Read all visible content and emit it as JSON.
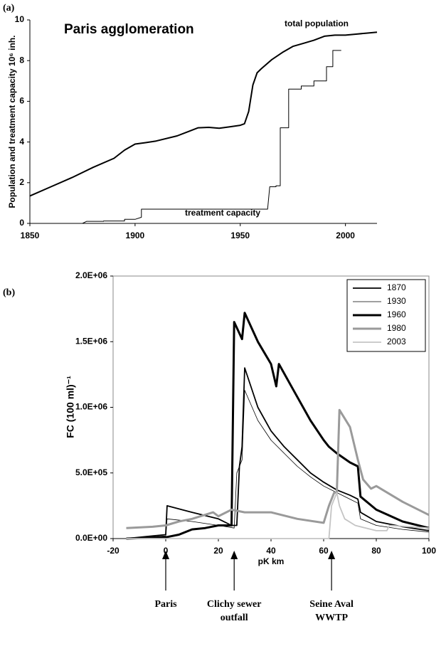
{
  "chart_data": [
    {
      "type": "line",
      "panel_label": "(a)",
      "title": "Paris agglomeration",
      "y_label": "Population and treatment capacity 10⁶ inh.",
      "xlim": [
        1850,
        2015
      ],
      "xticks": [
        1850,
        1900,
        1950,
        2000
      ],
      "ylim": [
        0,
        10
      ],
      "yticks": [
        0,
        2,
        4,
        6,
        8,
        10
      ],
      "series": [
        {
          "name": "total population",
          "color": "#000000",
          "linewidth": 2,
          "x": [
            1850,
            1860,
            1870,
            1880,
            1890,
            1895,
            1900,
            1905,
            1910,
            1920,
            1925,
            1930,
            1935,
            1940,
            1945,
            1950,
            1952,
            1954,
            1956,
            1958,
            1960,
            1965,
            1970,
            1975,
            1980,
            1985,
            1990,
            1995,
            2000,
            2005,
            2010,
            2015
          ],
          "values": [
            1.35,
            1.8,
            2.25,
            2.75,
            3.2,
            3.6,
            3.9,
            3.97,
            4.05,
            4.3,
            4.5,
            4.7,
            4.72,
            4.68,
            4.75,
            4.82,
            4.9,
            5.5,
            6.8,
            7.4,
            7.6,
            8.05,
            8.4,
            8.7,
            8.85,
            9.0,
            9.2,
            9.25,
            9.25,
            9.3,
            9.35,
            9.4
          ]
        },
        {
          "name": "treatment capacity",
          "color": "#000000",
          "linewidth": 1,
          "x": [
            1875,
            1877,
            1885,
            1885,
            1895,
            1895,
            1900,
            1903,
            1903,
            1963,
            1964,
            1967,
            1967,
            1969,
            1969,
            1973,
            1973,
            1979,
            1979,
            1985,
            1985,
            1991,
            1991,
            1994,
            1994,
            1998
          ],
          "values": [
            0,
            0.1,
            0.1,
            0.12,
            0.12,
            0.2,
            0.2,
            0.3,
            0.7,
            0.7,
            1.8,
            1.8,
            1.85,
            1.85,
            4.7,
            4.7,
            6.6,
            6.6,
            6.75,
            6.75,
            7.0,
            7.0,
            7.7,
            7.7,
            8.5,
            8.5
          ]
        }
      ]
    },
    {
      "type": "line",
      "panel_label": "(b)",
      "y_label": "FC (100 ml)⁻¹",
      "x_label": "pK km",
      "xlim": [
        -20,
        100
      ],
      "xticks": [
        -20,
        0,
        20,
        40,
        60,
        80,
        100
      ],
      "ylim": [
        0,
        2000000
      ],
      "yticks": [
        {
          "value": 0,
          "label": "0.0E+00"
        },
        {
          "value": 500000,
          "label": "5.0E+05"
        },
        {
          "value": 1000000,
          "label": "1.0E+06"
        },
        {
          "value": 1500000,
          "label": "1.5E+06"
        },
        {
          "value": 2000000,
          "label": "2.0E+06"
        }
      ],
      "legend": "top-right",
      "series": [
        {
          "name": "1870",
          "color": "#000000",
          "linewidth": 1.8,
          "x": [
            -15,
            -5,
            0,
            0.5,
            10,
            20,
            25,
            27,
            28,
            29,
            30,
            35,
            40,
            45,
            50,
            55,
            60,
            65,
            70,
            73,
            74,
            80,
            90,
            100
          ],
          "values": [
            0,
            20000,
            30000,
            250000,
            200000,
            150000,
            100000,
            100000,
            550000,
            700000,
            1300000,
            1000000,
            820000,
            700000,
            600000,
            500000,
            430000,
            370000,
            330000,
            300000,
            200000,
            130000,
            90000,
            60000
          ]
        },
        {
          "name": "1930",
          "color": "#000000",
          "linewidth": 0.8,
          "x": [
            -15,
            0,
            0.5,
            10,
            20,
            26,
            27,
            29,
            30,
            35,
            40,
            45,
            50,
            55,
            60,
            65,
            70,
            73,
            74,
            80,
            90,
            100
          ],
          "values": [
            0,
            20000,
            150000,
            130000,
            100000,
            80000,
            500000,
            600000,
            1130000,
            900000,
            750000,
            650000,
            550000,
            470000,
            400000,
            350000,
            300000,
            270000,
            150000,
            100000,
            70000,
            50000
          ]
        },
        {
          "name": "1960",
          "color": "#000000",
          "linewidth": 3,
          "x": [
            -15,
            0,
            5,
            10,
            15,
            20,
            25,
            26,
            29,
            30,
            35,
            40,
            42,
            43,
            48,
            55,
            60,
            62,
            65,
            70,
            73,
            74,
            80,
            90,
            100
          ],
          "values": [
            0,
            10000,
            30000,
            70000,
            80000,
            100000,
            100000,
            1650000,
            1520000,
            1720000,
            1500000,
            1330000,
            1160000,
            1330000,
            1150000,
            900000,
            750000,
            700000,
            650000,
            580000,
            550000,
            320000,
            220000,
            130000,
            80000
          ]
        },
        {
          "name": "1980",
          "color": "#9a9a9a",
          "linewidth": 3,
          "x": [
            -15,
            -5,
            0,
            5,
            10,
            18,
            20,
            25,
            30,
            40,
            50,
            60,
            62,
            64,
            65,
            66,
            70,
            73,
            75,
            78,
            80,
            90,
            100
          ],
          "values": [
            80000,
            90000,
            100000,
            130000,
            150000,
            200000,
            170000,
            220000,
            200000,
            200000,
            150000,
            120000,
            250000,
            350000,
            350000,
            980000,
            850000,
            600000,
            450000,
            380000,
            400000,
            280000,
            180000
          ]
        },
        {
          "name": "2003",
          "color": "#c4c4c4",
          "linewidth": 1.8,
          "x": [
            -15,
            60,
            62,
            63,
            65,
            66,
            68,
            72,
            80,
            84,
            85,
            100
          ],
          "values": [
            0,
            0,
            0,
            250000,
            350000,
            250000,
            150000,
            100000,
            60000,
            60000,
            100000,
            80000
          ]
        }
      ],
      "annotations": [
        {
          "x": 0,
          "lines": [
            "Paris"
          ]
        },
        {
          "x": 26,
          "lines": [
            "Clichy sewer",
            "outfall"
          ]
        },
        {
          "x": 63,
          "lines": [
            "Seine Aval",
            "WWTP"
          ]
        }
      ]
    }
  ]
}
